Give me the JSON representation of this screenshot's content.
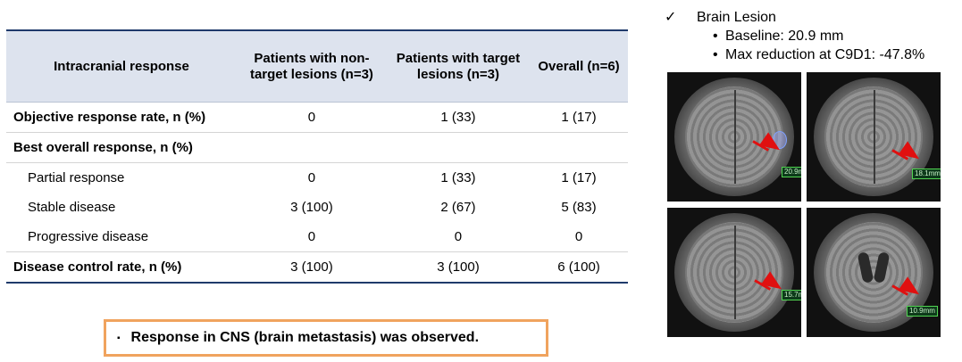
{
  "table": {
    "headers": [
      "Intracranial response",
      "Patients with non-target lesions (n=3)",
      "Patients with target lesions (n=3)",
      "Overall (n=6)"
    ],
    "rows": [
      {
        "label": "Objective response rate, n (%)",
        "c1": "0",
        "c2": "1 (33)",
        "c3": "1 (17)"
      },
      {
        "label": "Best overall response, n (%)",
        "c1": "",
        "c2": "",
        "c3": ""
      },
      {
        "label": "Partial response",
        "c1": "0",
        "c2": "1 (33)",
        "c3": "1 (17)"
      },
      {
        "label": "Stable disease",
        "c1": "3 (100)",
        "c2": "2 (67)",
        "c3": "5 (83)"
      },
      {
        "label": "Progressive disease",
        "c1": "0",
        "c2": "0",
        "c3": "0"
      },
      {
        "label": "Disease control rate, n (%)",
        "c1": "3 (100)",
        "c2": "3 (100)",
        "c3": "6 (100)"
      }
    ]
  },
  "callout": {
    "bullet": "▪",
    "text": "Response in CNS (brain metastasis) was observed."
  },
  "notes": {
    "check": "✓",
    "heading": "Brain Lesion",
    "items": [
      "Baseline: 20.9 mm",
      "Max reduction at C9D1: -47.8%"
    ]
  },
  "scans": [
    {
      "measure": "20.9m",
      "icon": "mri-scan"
    },
    {
      "measure": "18.1mm",
      "icon": "mri-scan"
    },
    {
      "measure": "15.7m",
      "icon": "mri-scan"
    },
    {
      "measure": "10.9mm",
      "icon": "mri-scan"
    }
  ],
  "colors": {
    "header_bg": "#dde3ee",
    "rule": "#1f3a6b",
    "callout_border": "#f0a35e",
    "arrow": "#e01010",
    "measure_border": "#52d452"
  }
}
